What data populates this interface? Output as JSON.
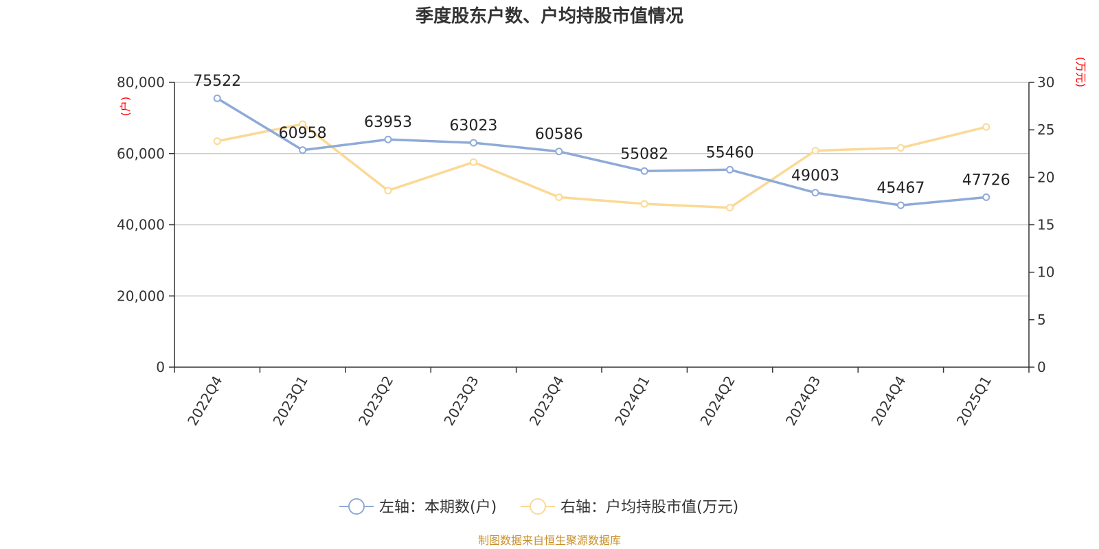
{
  "chart_data": {
    "type": "line",
    "title": "季度股东户数、户均持股市值情况",
    "categories": [
      "2022Q4",
      "2023Q1",
      "2023Q2",
      "2023Q3",
      "2023Q4",
      "2024Q1",
      "2024Q2",
      "2024Q3",
      "2024Q4",
      "2025Q1"
    ],
    "series": [
      {
        "name": "左轴：本期数(户)",
        "axis": "left",
        "color": "#8eaad8",
        "values": [
          75522,
          60958,
          63953,
          63023,
          60586,
          55082,
          55460,
          49003,
          45467,
          47726
        ],
        "data_labels": [
          "75522",
          "60958",
          "63953",
          "63023",
          "60586",
          "55082",
          "55460",
          "49003",
          "45467",
          "47726"
        ]
      },
      {
        "name": "右轴：户均持股市值(万元)",
        "axis": "right",
        "color": "#fbd995",
        "values": [
          23.8,
          25.6,
          18.6,
          21.6,
          17.9,
          17.2,
          16.8,
          22.8,
          23.1,
          25.3
        ]
      }
    ],
    "left_axis": {
      "unit": "(户)",
      "ylim": [
        0,
        80000
      ],
      "ticks": [
        0,
        20000,
        40000,
        60000,
        80000
      ],
      "tick_labels": [
        "0",
        "20,000",
        "40,000",
        "60,000",
        "80,000"
      ]
    },
    "right_axis": {
      "unit": "(万元)",
      "ylim": [
        0,
        30
      ],
      "ticks": [
        0,
        5,
        10,
        15,
        20,
        25,
        30
      ],
      "tick_labels": [
        "0",
        "5",
        "10",
        "15",
        "20",
        "25",
        "30"
      ]
    },
    "grid": true,
    "legend_position": "bottom-center"
  },
  "source_text": "制图数据来自恒生聚源数据库"
}
